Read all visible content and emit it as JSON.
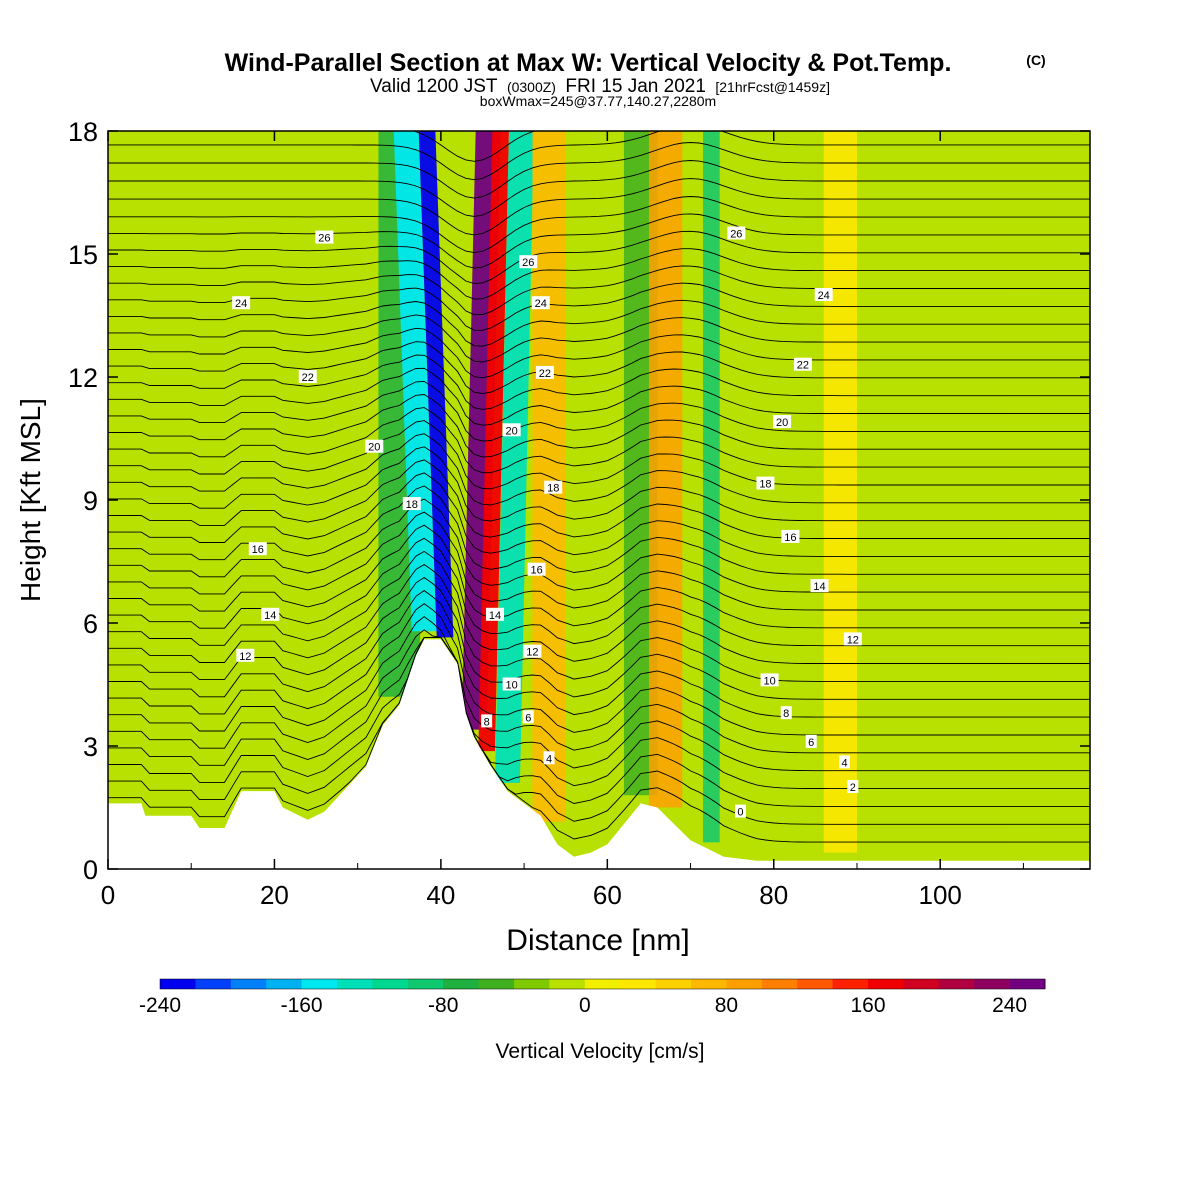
{
  "chart_data": {
    "type": "heatmap",
    "title": "Wind-Parallel Section at Max W: Vertical Velocity & Pot.Temp.",
    "title_mark": "(C)",
    "subtitle_valid": "Valid 1200 JST",
    "subtitle_zulu": "(0300Z)",
    "subtitle_date": "FRI 15 Jan 2021",
    "subtitle_fcst": "[21hrFcst@1459z]",
    "subtitle_box": "boxWmax=245@37.77,140.27,2280m",
    "xlabel": "Distance [nm]",
    "ylabel": "Height [Kft MSL]",
    "xlim": [
      0,
      118
    ],
    "ylim": [
      0,
      18
    ],
    "x_ticks": [
      "0",
      "20",
      "40",
      "60",
      "80",
      "100"
    ],
    "y_ticks": [
      "0",
      "3",
      "6",
      "9",
      "12",
      "15",
      "18"
    ],
    "x_tick_values": [
      0,
      20,
      40,
      60,
      80,
      100
    ],
    "y_tick_values": [
      0,
      3,
      6,
      9,
      12,
      15,
      18
    ],
    "colorbar": {
      "label": "Vertical Velocity [cm/s]",
      "range": [
        -240,
        260
      ],
      "step": 20,
      "tick_labels": [
        "-240",
        "-160",
        "-80",
        "0",
        "80",
        "160",
        "240"
      ],
      "tick_values": [
        -240,
        -160,
        -80,
        0,
        80,
        160,
        240
      ],
      "colors": [
        "#0000f0",
        "#0040f8",
        "#0080f8",
        "#00b0f0",
        "#00e8f0",
        "#00e0b8",
        "#00d890",
        "#10c870",
        "#20b040",
        "#40b020",
        "#80c800",
        "#b8e000",
        "#f0f000",
        "#ffe800",
        "#ffd000",
        "#ffb800",
        "#ffa000",
        "#ff8000",
        "#ff5800",
        "#ff2000",
        "#f00000",
        "#d00020",
        "#b00040",
        "#900060",
        "#700080"
      ]
    },
    "terrain": {
      "x": [
        0,
        4,
        4.5,
        10,
        11,
        14,
        16,
        20,
        21,
        24,
        26,
        31,
        33,
        35,
        37,
        38,
        40,
        42,
        43,
        44,
        46,
        48,
        52,
        54,
        56,
        58,
        60,
        62,
        64,
        66,
        68,
        70,
        72,
        74,
        78,
        118
      ],
      "y": [
        1.6,
        1.6,
        1.3,
        1.3,
        1.0,
        1.0,
        1.9,
        1.9,
        1.5,
        1.2,
        1.4,
        2.5,
        3.5,
        4.0,
        5.2,
        5.6,
        5.6,
        5.0,
        3.8,
        3.2,
        2.5,
        1.9,
        1.3,
        0.6,
        0.3,
        0.4,
        0.6,
        1.1,
        1.6,
        1.5,
        1.1,
        0.7,
        0.5,
        0.3,
        0.2,
        0.2
      ]
    },
    "vertical_velocity_bands": [
      {
        "x": 35,
        "w": 5,
        "value": -70
      },
      {
        "x": 38,
        "w": 3,
        "value": -160
      },
      {
        "x": 40.5,
        "w": 2,
        "value": -240
      },
      {
        "x": 44,
        "w": 3,
        "value": 240
      },
      {
        "x": 45.5,
        "w": 2,
        "value": 160
      },
      {
        "x": 48,
        "w": 3,
        "value": -140
      },
      {
        "x": 53,
        "w": 4,
        "value": 60
      },
      {
        "x": 64,
        "w": 4,
        "value": -50
      },
      {
        "x": 67,
        "w": 4,
        "value": 80
      },
      {
        "x": 72.5,
        "w": 2,
        "value": -90
      },
      {
        "x": 88,
        "w": 4,
        "value": 30
      },
      {
        "x": 110,
        "w": 6,
        "value": -20
      }
    ],
    "theta_contour_labels": [
      {
        "text": "26",
        "x": 26,
        "y": 15.4
      },
      {
        "text": "24",
        "x": 16,
        "y": 13.8
      },
      {
        "text": "22",
        "x": 24,
        "y": 12.0
      },
      {
        "text": "20",
        "x": 32,
        "y": 10.3
      },
      {
        "text": "18",
        "x": 36.5,
        "y": 8.9
      },
      {
        "text": "16",
        "x": 18,
        "y": 7.8
      },
      {
        "text": "14",
        "x": 19.5,
        "y": 6.2
      },
      {
        "text": "12",
        "x": 16.5,
        "y": 5.2
      },
      {
        "text": "26",
        "x": 50.5,
        "y": 14.8
      },
      {
        "text": "24",
        "x": 52,
        "y": 13.8
      },
      {
        "text": "22",
        "x": 52.5,
        "y": 12.1
      },
      {
        "text": "20",
        "x": 48.5,
        "y": 10.7
      },
      {
        "text": "18",
        "x": 53.5,
        "y": 9.3
      },
      {
        "text": "16",
        "x": 51.5,
        "y": 7.3
      },
      {
        "text": "14",
        "x": 46.5,
        "y": 6.2
      },
      {
        "text": "12",
        "x": 51,
        "y": 5.3
      },
      {
        "text": "10",
        "x": 48.5,
        "y": 4.5
      },
      {
        "text": "8",
        "x": 45.5,
        "y": 3.6
      },
      {
        "text": "6",
        "x": 50.5,
        "y": 3.7
      },
      {
        "text": "4",
        "x": 53,
        "y": 2.7
      },
      {
        "text": "26",
        "x": 75.5,
        "y": 15.5
      },
      {
        "text": "24",
        "x": 86,
        "y": 14.0
      },
      {
        "text": "22",
        "x": 83.5,
        "y": 12.3
      },
      {
        "text": "20",
        "x": 81,
        "y": 10.9
      },
      {
        "text": "18",
        "x": 79,
        "y": 9.4
      },
      {
        "text": "16",
        "x": 82,
        "y": 8.1
      },
      {
        "text": "14",
        "x": 85.5,
        "y": 6.9
      },
      {
        "text": "12",
        "x": 89.5,
        "y": 5.6
      },
      {
        "text": "10",
        "x": 79.5,
        "y": 4.6
      },
      {
        "text": "8",
        "x": 81.5,
        "y": 3.8
      },
      {
        "text": "6",
        "x": 84.5,
        "y": 3.1
      },
      {
        "text": "4",
        "x": 88.5,
        "y": 2.6
      },
      {
        "text": "2",
        "x": 89.5,
        "y": 2.0
      },
      {
        "text": "0",
        "x": 76,
        "y": 1.4
      }
    ]
  }
}
